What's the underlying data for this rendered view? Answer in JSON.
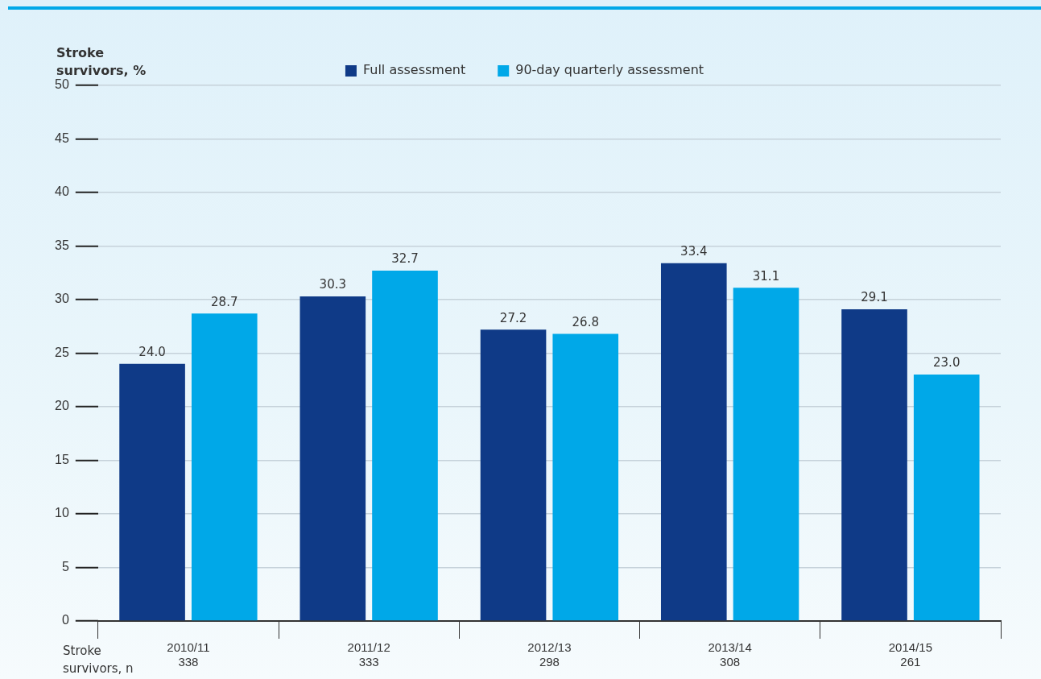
{
  "chart_data": {
    "type": "bar",
    "ylabel": "Stroke\nsurvivors, %",
    "categories": [
      "2010/11\n338",
      "2011/12\n333",
      "2012/13\n298",
      "2013/14\n308",
      "2014/15\n261"
    ],
    "series": [
      {
        "name": "Full assessment",
        "color": "#0f3a87",
        "values": [
          24.0,
          30.3,
          27.2,
          33.4,
          29.1
        ],
        "value_labels": [
          "24.0",
          "30.3",
          "27.2",
          "33.4",
          "29.1"
        ]
      },
      {
        "name": "90-day quarterly assessment",
        "color": "#00a8e8",
        "values": [
          28.7,
          32.7,
          26.8,
          31.1,
          23.0
        ],
        "value_labels": [
          "28.7",
          "32.7",
          "26.8",
          "31.1",
          "23.0"
        ]
      }
    ],
    "ylim": [
      0,
      50
    ],
    "yticks": [
      0,
      5,
      10,
      15,
      20,
      25,
      30,
      35,
      40,
      45,
      50
    ],
    "grid": "y",
    "legend": "top",
    "annotations": [
      "Stroke survivors, n"
    ]
  }
}
